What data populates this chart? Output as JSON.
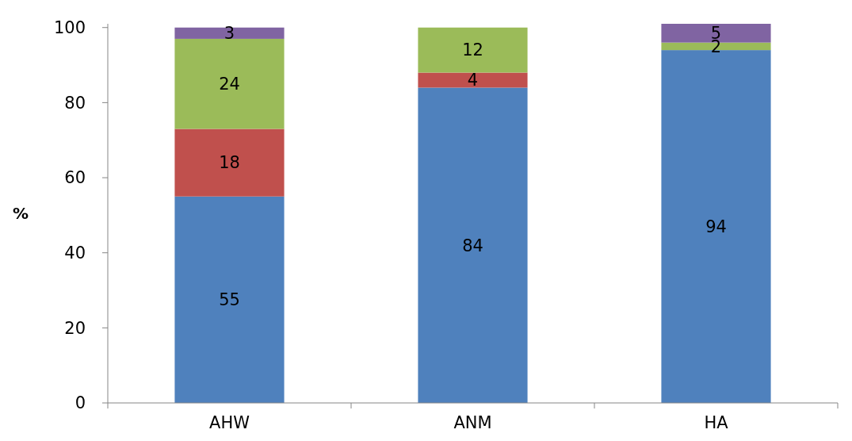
{
  "chart_data": {
    "type": "bar",
    "stacked": true,
    "ylabel": "%",
    "categories": [
      "AHW",
      "ANM",
      "HA"
    ],
    "series": [
      {
        "color": "#4f81bd",
        "values": [
          55,
          84,
          94
        ]
      },
      {
        "color": "#c0504d",
        "values": [
          18,
          4,
          null
        ]
      },
      {
        "color": "#9bbb59",
        "values": [
          24,
          12,
          2
        ]
      },
      {
        "color": "#8064a2",
        "values": [
          3,
          null,
          5
        ]
      }
    ],
    "ylim": [
      0,
      101
    ],
    "yticks": [
      0,
      20,
      40,
      60,
      80,
      100
    ],
    "data_labels": true,
    "grid": false
  }
}
